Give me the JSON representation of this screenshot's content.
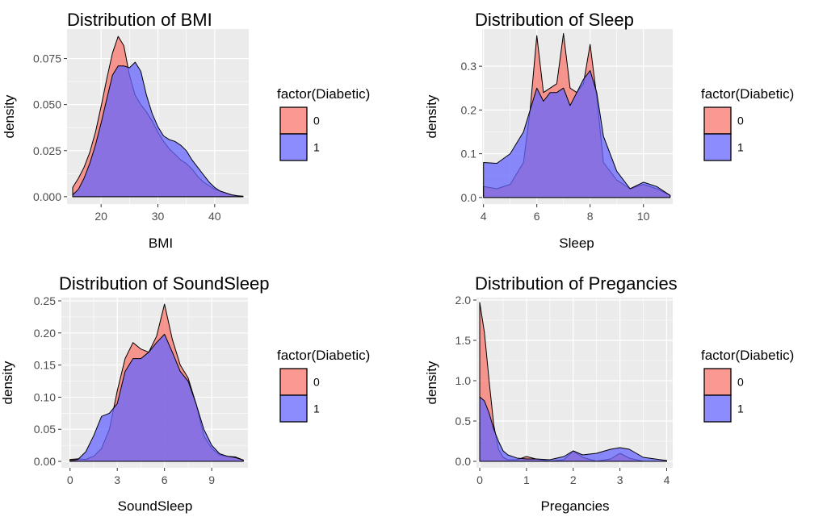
{
  "colors": {
    "panel_bg": "#EBEBEB",
    "grid_major": "#FFFFFF",
    "fill_0": "#F8766D",
    "fill_1": "#6666FF",
    "overlap": "#8A45B8",
    "outline": "#000000"
  },
  "legend": {
    "title": "factor(Diabetic)",
    "items": [
      "0",
      "1"
    ]
  },
  "ylabel": "density",
  "chart_data": [
    {
      "type": "area",
      "title": "Distribution of BMI",
      "xlabel": "BMI",
      "ylabel": "density",
      "xlim": [
        14,
        46
      ],
      "ylim": [
        -0.004,
        0.091
      ],
      "xticks": [
        20,
        30,
        40
      ],
      "xtick_labels": [
        "20",
        "30",
        "40"
      ],
      "yticks": [
        0,
        0.025,
        0.05,
        0.075
      ],
      "ytick_labels": [
        "0.000",
        "0.025",
        "0.050",
        "0.075"
      ],
      "series": [
        {
          "name": "0",
          "x": [
            15,
            16,
            17,
            18,
            19,
            20,
            21,
            22,
            23,
            24,
            25,
            26,
            27,
            28,
            29,
            30,
            31,
            32,
            33,
            34,
            35,
            36,
            37,
            38,
            39,
            40,
            41,
            42,
            43,
            44,
            45
          ],
          "y": [
            0.005,
            0.01,
            0.016,
            0.024,
            0.035,
            0.049,
            0.064,
            0.078,
            0.087,
            0.082,
            0.066,
            0.055,
            0.05,
            0.046,
            0.041,
            0.035,
            0.03,
            0.026,
            0.023,
            0.02,
            0.018,
            0.015,
            0.011,
            0.008,
            0.006,
            0.004,
            0.003,
            0.002,
            0.001,
            0.0005,
            0.0002
          ]
        },
        {
          "name": "1",
          "x": [
            15,
            16,
            17,
            18,
            19,
            20,
            21,
            22,
            23,
            24,
            25,
            26,
            27,
            28,
            29,
            30,
            31,
            32,
            33,
            34,
            35,
            36,
            37,
            38,
            39,
            40,
            41,
            42,
            43,
            44,
            45
          ],
          "y": [
            0.001,
            0.004,
            0.01,
            0.018,
            0.028,
            0.04,
            0.053,
            0.066,
            0.071,
            0.071,
            0.07,
            0.073,
            0.068,
            0.055,
            0.045,
            0.038,
            0.033,
            0.031,
            0.03,
            0.028,
            0.025,
            0.02,
            0.016,
            0.012,
            0.008,
            0.005,
            0.003,
            0.002,
            0.001,
            0.0005,
            0.0002
          ]
        }
      ]
    },
    {
      "type": "area",
      "title": "Distribution of Sleep",
      "xlabel": "Sleep",
      "ylabel": "density",
      "xlim": [
        3.95,
        11.1
      ],
      "ylim": [
        -0.015,
        0.385
      ],
      "xticks": [
        4,
        6,
        8,
        10
      ],
      "xtick_labels": [
        "4",
        "6",
        "8",
        "10"
      ],
      "yticks": [
        0,
        0.1,
        0.2,
        0.3
      ],
      "ytick_labels": [
        "0.0",
        "0.1",
        "0.2",
        "0.3"
      ],
      "series": [
        {
          "name": "0",
          "x": [
            4,
            4.5,
            5,
            5.5,
            5.75,
            6,
            6.25,
            6.5,
            6.75,
            7,
            7.25,
            7.5,
            7.75,
            8,
            8.25,
            8.5,
            9,
            9.5,
            10,
            10.5,
            11
          ],
          "y": [
            0.025,
            0.02,
            0.03,
            0.08,
            0.2,
            0.37,
            0.24,
            0.25,
            0.26,
            0.375,
            0.25,
            0.24,
            0.26,
            0.35,
            0.23,
            0.08,
            0.04,
            0.02,
            0.03,
            0.02,
            0.005
          ]
        },
        {
          "name": "1",
          "x": [
            4,
            4.5,
            5,
            5.5,
            5.75,
            6,
            6.25,
            6.5,
            6.75,
            7,
            7.25,
            7.5,
            7.75,
            8,
            8.25,
            8.5,
            9,
            9.5,
            10,
            10.5,
            11
          ],
          "y": [
            0.08,
            0.078,
            0.1,
            0.15,
            0.2,
            0.25,
            0.22,
            0.24,
            0.24,
            0.25,
            0.21,
            0.24,
            0.27,
            0.29,
            0.24,
            0.14,
            0.06,
            0.02,
            0.035,
            0.025,
            0.005
          ]
        }
      ]
    },
    {
      "type": "area",
      "title": "Distribution of SoundSleep",
      "xlabel": "SoundSleep",
      "ylabel": "density",
      "xlim": [
        -0.55,
        11.3
      ],
      "ylim": [
        -0.01,
        0.255
      ],
      "xticks": [
        0,
        3,
        6,
        9
      ],
      "xtick_labels": [
        "0",
        "3",
        "6",
        "9"
      ],
      "yticks": [
        0,
        0.05,
        0.1,
        0.15,
        0.2,
        0.25
      ],
      "ytick_labels": [
        "0.00",
        "0.05",
        "0.10",
        "0.15",
        "0.20",
        "0.25"
      ],
      "series": [
        {
          "name": "0",
          "x": [
            0,
            0.5,
            1,
            1.5,
            2,
            2.5,
            3,
            3.5,
            4,
            4.5,
            5,
            5.5,
            6,
            6.5,
            7,
            7.5,
            8,
            8.5,
            9,
            9.5,
            10,
            10.5,
            11
          ],
          "y": [
            0.003,
            0.004,
            0.003,
            0.008,
            0.02,
            0.05,
            0.11,
            0.16,
            0.185,
            0.175,
            0.17,
            0.195,
            0.245,
            0.19,
            0.15,
            0.13,
            0.09,
            0.04,
            0.02,
            0.01,
            0.008,
            0.007,
            0.002
          ]
        },
        {
          "name": "1",
          "x": [
            0,
            0.5,
            1,
            1.5,
            2,
            2.5,
            3,
            3.5,
            4,
            4.5,
            5,
            5.5,
            6,
            6.5,
            7,
            7.5,
            8,
            8.5,
            9,
            9.5,
            10,
            10.5,
            11
          ],
          "y": [
            0.001,
            0.003,
            0.015,
            0.04,
            0.07,
            0.075,
            0.09,
            0.14,
            0.16,
            0.16,
            0.17,
            0.185,
            0.198,
            0.17,
            0.14,
            0.125,
            0.09,
            0.05,
            0.025,
            0.012,
            0.008,
            0.006,
            0.002
          ]
        }
      ]
    },
    {
      "type": "area",
      "title": "Distribution of Pregancies",
      "xlabel": "Pregancies",
      "ylabel": "density",
      "xlim": [
        -0.07,
        4.13
      ],
      "ylim": [
        -0.08,
        2.03
      ],
      "xticks": [
        0,
        1,
        2,
        3,
        4
      ],
      "xtick_labels": [
        "0",
        "1",
        "2",
        "3",
        "4"
      ],
      "yticks": [
        0,
        0.5,
        1,
        1.5,
        2
      ],
      "ytick_labels": [
        "0.0",
        "0.5",
        "1.0",
        "1.5",
        "2.0"
      ],
      "series": [
        {
          "name": "0",
          "x": [
            0,
            0.1,
            0.2,
            0.3,
            0.4,
            0.5,
            0.6,
            0.8,
            1,
            1.2,
            1.5,
            1.8,
            2,
            2.2,
            2.5,
            2.8,
            3,
            3.2,
            3.5,
            4
          ],
          "y": [
            1.97,
            1.6,
            1.0,
            0.45,
            0.15,
            0.05,
            0.02,
            0.02,
            0.06,
            0.03,
            0.0,
            0.02,
            0.13,
            0.05,
            0.0,
            0.03,
            0.1,
            0.04,
            0.0,
            0.0
          ]
        },
        {
          "name": "1",
          "x": [
            0,
            0.1,
            0.2,
            0.3,
            0.4,
            0.5,
            0.6,
            0.8,
            1,
            1.2,
            1.5,
            1.8,
            2,
            2.2,
            2.5,
            2.8,
            3,
            3.2,
            3.5,
            4
          ],
          "y": [
            0.8,
            0.75,
            0.6,
            0.4,
            0.25,
            0.13,
            0.08,
            0.04,
            0.03,
            0.03,
            0.02,
            0.06,
            0.13,
            0.08,
            0.1,
            0.15,
            0.17,
            0.15,
            0.05,
            0.01
          ]
        }
      ]
    }
  ]
}
